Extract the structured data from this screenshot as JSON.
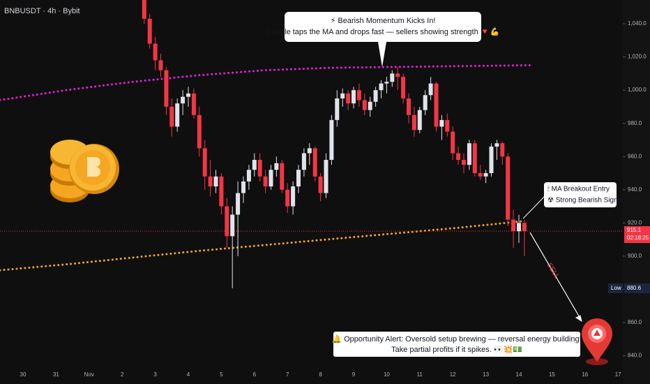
{
  "chart_data": {
    "type": "candlestick",
    "title": "BNBUSDT · 4h · Bybit",
    "up_color": "#e0e3eb",
    "down_color": "#f23645",
    "candles": [
      [
        1062,
        1065,
        1040,
        1043
      ],
      [
        1043,
        1046,
        1025,
        1028
      ],
      [
        1028,
        1032,
        1012,
        1018
      ],
      [
        1018,
        1022,
        1008,
        1012
      ],
      [
        1012,
        1014,
        985,
        990
      ],
      [
        990,
        995,
        972,
        978
      ],
      [
        978,
        995,
        975,
        992
      ],
      [
        992,
        1000,
        985,
        996
      ],
      [
        996,
        1002,
        990,
        998
      ],
      [
        998,
        1001,
        983,
        985
      ],
      [
        985,
        990,
        960,
        965
      ],
      [
        965,
        970,
        940,
        948
      ],
      [
        948,
        958,
        936,
        942
      ],
      [
        942,
        952,
        938,
        948
      ],
      [
        948,
        950,
        925,
        930
      ],
      [
        930,
        935,
        905,
        912
      ],
      [
        912,
        930,
        880.6,
        925
      ],
      [
        925,
        945,
        900,
        938
      ],
      [
        938,
        948,
        932,
        945
      ],
      [
        945,
        955,
        940,
        952
      ],
      [
        952,
        962,
        948,
        958
      ],
      [
        958,
        962,
        945,
        948
      ],
      [
        948,
        952,
        938,
        942
      ],
      [
        942,
        955,
        940,
        952
      ],
      [
        952,
        960,
        948,
        956
      ],
      [
        956,
        958,
        938,
        940
      ],
      [
        940,
        944,
        926,
        930
      ],
      [
        930,
        945,
        925,
        942
      ],
      [
        942,
        955,
        938,
        952
      ],
      [
        952,
        965,
        948,
        962
      ],
      [
        962,
        968,
        955,
        965
      ],
      [
        965,
        966,
        945,
        948
      ],
      [
        948,
        950,
        933,
        938
      ],
      [
        938,
        962,
        935,
        958
      ],
      [
        958,
        985,
        955,
        982
      ],
      [
        982,
        1000,
        978,
        995
      ],
      [
        995,
        1001,
        990,
        998
      ],
      [
        998,
        1000,
        988,
        992
      ],
      [
        992,
        1002,
        989,
        1000
      ],
      [
        1000,
        1004,
        990,
        994
      ],
      [
        994,
        998,
        985,
        988
      ],
      [
        988,
        996,
        984,
        993
      ],
      [
        993,
        1002,
        990,
        1000
      ],
      [
        1000,
        1006,
        995,
        1004
      ],
      [
        1004,
        1008,
        998,
        1005
      ],
      [
        1005,
        1012,
        1002,
        1010
      ],
      [
        1010,
        1014,
        1000,
        1008
      ],
      [
        1008,
        1010,
        992,
        995
      ],
      [
        995,
        998,
        980,
        985
      ],
      [
        985,
        990,
        972,
        976
      ],
      [
        976,
        990,
        974,
        988
      ],
      [
        988,
        1000,
        985,
        997
      ],
      [
        997,
        1008,
        994,
        1004
      ],
      [
        1004,
        1005,
        975,
        978
      ],
      [
        978,
        985,
        970,
        982
      ],
      [
        982,
        986,
        972,
        975
      ],
      [
        975,
        978,
        958,
        962
      ],
      [
        962,
        966,
        955,
        958
      ],
      [
        958,
        962,
        950,
        955
      ],
      [
        955,
        970,
        952,
        968
      ],
      [
        968,
        970,
        948,
        950
      ],
      [
        950,
        955,
        946,
        948
      ],
      [
        948,
        952,
        944,
        950
      ],
      [
        950,
        968,
        948,
        966
      ],
      [
        966,
        970,
        958,
        968
      ],
      [
        968,
        969,
        955,
        960
      ],
      [
        960,
        962,
        918,
        922
      ],
      [
        922,
        928,
        905,
        915
      ],
      [
        915,
        925,
        908,
        920
      ],
      [
        920,
        922,
        900,
        915.1
      ]
    ],
    "ma_lines": [
      {
        "color": "#e91ee0",
        "values": [
          994,
          1000,
          1005,
          1009,
          1012,
          1013.5,
          1014,
          1014.5,
          1015
        ]
      },
      {
        "color": "#f5a623",
        "values": [
          891.5,
          895,
          899,
          903,
          906.5,
          910,
          913.5,
          917,
          921
        ]
      }
    ],
    "ylim": [
      833.5,
      1054.3
    ],
    "yticks": [
      {
        "value": 840,
        "label": "840.0"
      },
      {
        "value": 860,
        "label": "860.0"
      },
      {
        "value": 880,
        "label": "880.0"
      },
      {
        "value": 900,
        "label": "900.0"
      },
      {
        "value": 920,
        "label": "920.0"
      },
      {
        "value": 940,
        "label": "940.0"
      },
      {
        "value": 960,
        "label": "960.0"
      },
      {
        "value": 980,
        "label": "980.0"
      },
      {
        "value": 1000,
        "label": "1,000.0"
      },
      {
        "value": 1020,
        "label": "1,020.0"
      },
      {
        "value": 1040,
        "label": "1,040.0"
      }
    ],
    "xtick_labels": [
      "30",
      "31",
      "Nov",
      "2",
      "3",
      "4",
      "5",
      "6",
      "7",
      "8",
      "9",
      "10",
      "11",
      "12",
      "13",
      "14",
      "15",
      "16",
      "17"
    ],
    "last_price": {
      "value": 915.1,
      "countdown": "02:18:25",
      "color": "#f23645"
    },
    "low": {
      "label": "Low",
      "value": 880.6
    },
    "annotations": {
      "momentum": [
        "⚡ Bearish Momentum Kicks In!",
        "Candle taps the MA and drops fast — sellers showing strength 🔻💪"
      ],
      "entry": [
        "🕯 MA Breakout Entry",
        "☢ Strong Bearish Signal"
      ],
      "sell": "SELL",
      "alert": [
        "🔔 Opportunity Alert: Oversold setup brewing — reversal energy building!",
        "Take partial profits if it spikes. 👀💥💵"
      ]
    }
  }
}
